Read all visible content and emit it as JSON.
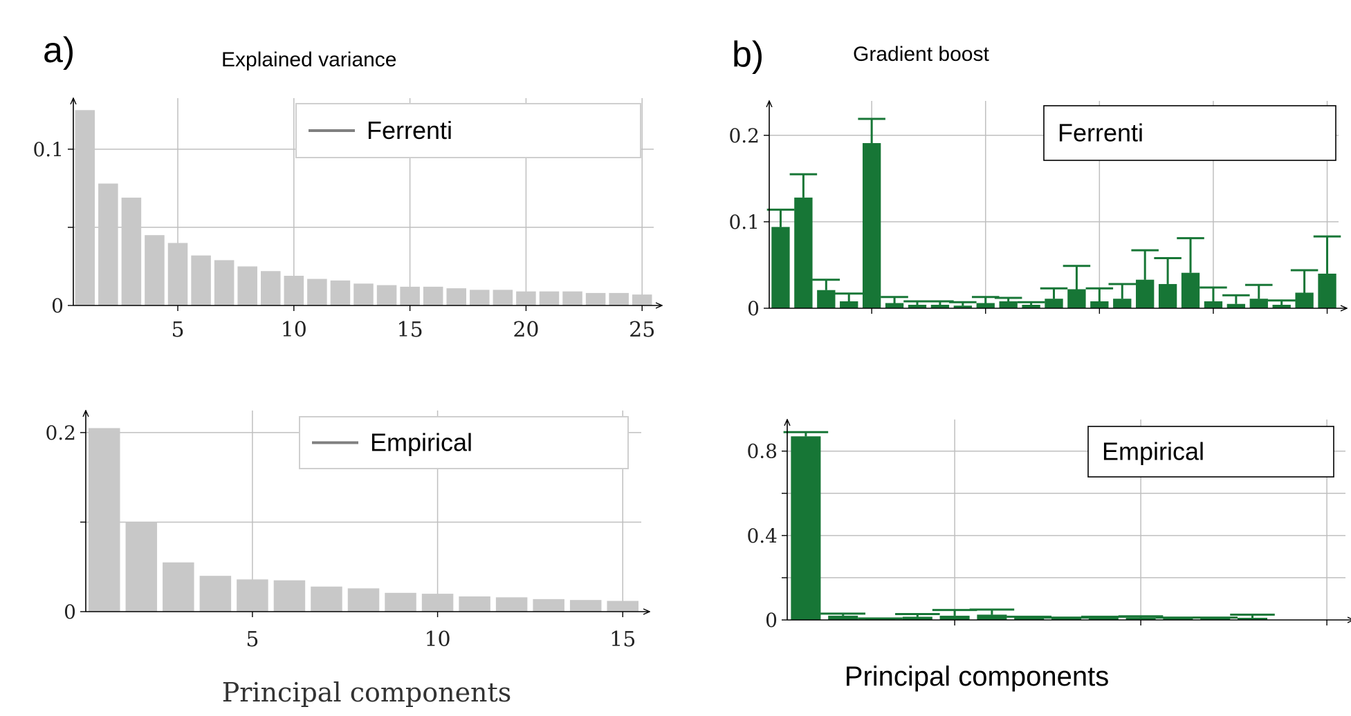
{
  "panel_a": {
    "label": "a)",
    "title": "Explained variance",
    "xlabel": "Principal components"
  },
  "panel_b": {
    "label": "b)",
    "title": "Gradient boost",
    "xlabel": "Principal components"
  },
  "colors": {
    "bar_gray": "#c8c8c8",
    "bar_green": "#177636",
    "grid": "#bfbfbf",
    "axis": "#000000",
    "legend_line": "#808080"
  },
  "chart_data": [
    {
      "id": "a_top",
      "type": "bar",
      "legend": "Ferrenti",
      "x": [
        1,
        2,
        3,
        4,
        5,
        6,
        7,
        8,
        9,
        10,
        11,
        12,
        13,
        14,
        15,
        16,
        17,
        18,
        19,
        20,
        21,
        22,
        23,
        24,
        25
      ],
      "values": [
        0.125,
        0.078,
        0.069,
        0.045,
        0.04,
        0.032,
        0.029,
        0.025,
        0.022,
        0.019,
        0.017,
        0.016,
        0.014,
        0.013,
        0.012,
        0.012,
        0.011,
        0.01,
        0.01,
        0.009,
        0.009,
        0.009,
        0.008,
        0.008,
        0.007
      ],
      "xlim": [
        0.5,
        25.5
      ],
      "ylim": [
        0,
        0.13
      ],
      "xticks": [
        5,
        10,
        15,
        20,
        25
      ],
      "xtick_labels": [
        "5",
        "10",
        "15",
        "20",
        "25"
      ],
      "yticks": [
        0,
        0.05,
        0.1
      ],
      "ytick_labels": [
        "0",
        "",
        "0.1"
      ],
      "grid": true,
      "legend_position": "top-right"
    },
    {
      "id": "a_bottom",
      "type": "bar",
      "legend": "Empirical",
      "x": [
        1,
        2,
        3,
        4,
        5,
        6,
        7,
        8,
        9,
        10,
        11,
        12,
        13,
        14,
        15
      ],
      "values": [
        0.205,
        0.1,
        0.055,
        0.04,
        0.036,
        0.035,
        0.028,
        0.026,
        0.021,
        0.02,
        0.017,
        0.016,
        0.014,
        0.013,
        0.012
      ],
      "xlim": [
        0.5,
        15.5
      ],
      "ylim": [
        0,
        0.22
      ],
      "xticks": [
        5,
        10,
        15
      ],
      "xtick_labels": [
        "5",
        "10",
        "15"
      ],
      "yticks": [
        0,
        0.1,
        0.2
      ],
      "ytick_labels": [
        "0",
        "",
        "0.2"
      ],
      "grid": true,
      "legend_position": "top-right"
    },
    {
      "id": "b_top",
      "type": "bar",
      "legend": "Ferrenti",
      "error_bars": true,
      "x": [
        1,
        2,
        3,
        4,
        5,
        6,
        7,
        8,
        9,
        10,
        11,
        12,
        13,
        14,
        15,
        16,
        17,
        18,
        19,
        20,
        21,
        22,
        23,
        24,
        25
      ],
      "values": [
        0.094,
        0.128,
        0.021,
        0.008,
        0.191,
        0.006,
        0.004,
        0.004,
        0.003,
        0.006,
        0.008,
        0.004,
        0.011,
        0.022,
        0.008,
        0.011,
        0.033,
        0.028,
        0.041,
        0.008,
        0.005,
        0.011,
        0.004,
        0.018,
        0.04
      ],
      "errors": [
        0.02,
        0.027,
        0.012,
        0.009,
        0.028,
        0.007,
        0.004,
        0.004,
        0.004,
        0.007,
        0.004,
        0.003,
        0.012,
        0.027,
        0.015,
        0.017,
        0.034,
        0.03,
        0.04,
        0.016,
        0.01,
        0.016,
        0.005,
        0.026,
        0.043
      ],
      "xlim": [
        0.5,
        25.5
      ],
      "ylim": [
        0,
        0.235
      ],
      "xticks": [
        5,
        10,
        15,
        20,
        25
      ],
      "xtick_labels": [
        "",
        "",
        "",
        "",
        ""
      ],
      "yticks": [
        0,
        0.1,
        0.2
      ],
      "ytick_labels": [
        "0",
        "0.1",
        "0.2"
      ],
      "grid": true,
      "legend_position": "top-right"
    },
    {
      "id": "b_bottom",
      "type": "bar",
      "legend": "Empirical",
      "error_bars": true,
      "x": [
        1,
        2,
        3,
        4,
        5,
        6,
        7,
        8,
        9,
        10,
        11,
        12,
        13
      ],
      "values": [
        0.87,
        0.02,
        0.005,
        0.015,
        0.02,
        0.025,
        0.012,
        0.008,
        0.012,
        0.012,
        0.008,
        0.008,
        0.01
      ],
      "errors": [
        0.02,
        0.01,
        0.002,
        0.013,
        0.027,
        0.024,
        0.003,
        0.003,
        0.003,
        0.005,
        0.003,
        0.003,
        0.015
      ],
      "xlim": [
        0.5,
        15.5
      ],
      "ylim": [
        0,
        0.93
      ],
      "xticks": [
        5,
        10,
        15
      ],
      "xtick_labels": [
        "",
        "",
        ""
      ],
      "yticks": [
        0,
        0.2,
        0.4,
        0.6,
        0.8
      ],
      "ytick_labels": [
        "0",
        "",
        "0.4",
        "",
        "0.8"
      ],
      "grid": true,
      "legend_position": "top-right"
    }
  ]
}
